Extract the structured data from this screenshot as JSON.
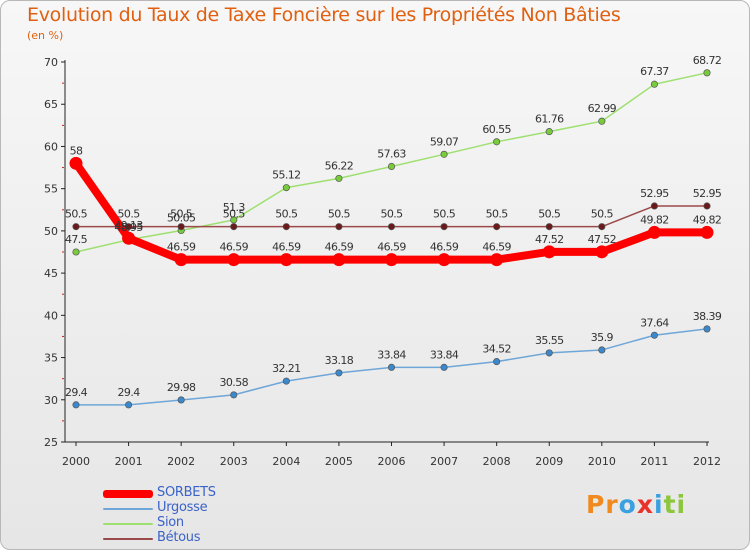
{
  "chart_data": {
    "type": "line",
    "title": "Evolution du Taux de Taxe Foncière sur les Propriétés Non Bâties",
    "ylabel": "(en %)",
    "xlabel": "",
    "ylim": [
      25,
      70
    ],
    "yticks": [
      25,
      30,
      35,
      40,
      45,
      50,
      55,
      60,
      65,
      70
    ],
    "grid": false,
    "categories": [
      "2000",
      "2001",
      "2002",
      "2003",
      "2004",
      "2005",
      "2006",
      "2007",
      "2008",
      "2009",
      "2010",
      "2011",
      "2012"
    ],
    "series": [
      {
        "name": "SORBETS",
        "color": "#ff0000",
        "marker": "#ff0000",
        "values": [
          58,
          49.13,
          46.59,
          46.59,
          46.59,
          46.59,
          46.59,
          46.59,
          46.59,
          47.52,
          47.52,
          49.82,
          49.82
        ],
        "labels": [
          "58",
          "49.13",
          "46.59",
          "46.59",
          "46.59",
          "46.59",
          "46.59",
          "46.59",
          "46.59",
          "47.52",
          "47.52",
          "49.82",
          "49.82"
        ]
      },
      {
        "name": "Urgosse",
        "color": "#6fa6d8",
        "marker": "#3b88cc",
        "values": [
          29.4,
          29.4,
          29.98,
          30.58,
          32.21,
          33.18,
          33.84,
          33.84,
          34.52,
          35.55,
          35.9,
          37.64,
          38.39
        ],
        "labels": [
          "29.4",
          "29.4",
          "29.98",
          "30.58",
          "32.21",
          "33.18",
          "33.84",
          "33.84",
          "34.52",
          "35.55",
          "35.9",
          "37.64",
          "38.39"
        ]
      },
      {
        "name": "Sion",
        "color": "#9ee070",
        "marker": "#78cc3c",
        "values": [
          47.5,
          48.95,
          50.05,
          51.3,
          55.12,
          56.22,
          57.63,
          59.07,
          60.55,
          61.76,
          62.99,
          67.37,
          68.72
        ],
        "labels": [
          "47.5",
          "48.95",
          "50.05",
          "51.3",
          "55.12",
          "56.22",
          "57.63",
          "59.07",
          "60.55",
          "61.76",
          "62.99",
          "67.37",
          "68.72"
        ]
      },
      {
        "name": "Bétous",
        "color": "#9a4a4a",
        "marker": "#6a1a1a",
        "values": [
          50.5,
          50.5,
          50.5,
          50.5,
          50.5,
          50.5,
          50.5,
          50.5,
          50.5,
          50.5,
          50.5,
          52.95,
          52.95
        ],
        "labels": [
          "50.5",
          "50.5",
          "50.5",
          "50.5",
          "50.5",
          "50.5",
          "50.5",
          "50.5",
          "50.5",
          "50.5",
          "50.5",
          "52.95",
          "52.95"
        ]
      }
    ]
  },
  "logo": {
    "text": "Proxiti",
    "letters": [
      "P",
      "r",
      "o",
      "x",
      "i",
      "t",
      "i"
    ],
    "colors": [
      "#f08a1e",
      "#f08a1e",
      "#3aa0e0",
      "#e8322a",
      "#3aa0e0",
      "#8cc63c",
      "#8cc63c"
    ]
  }
}
